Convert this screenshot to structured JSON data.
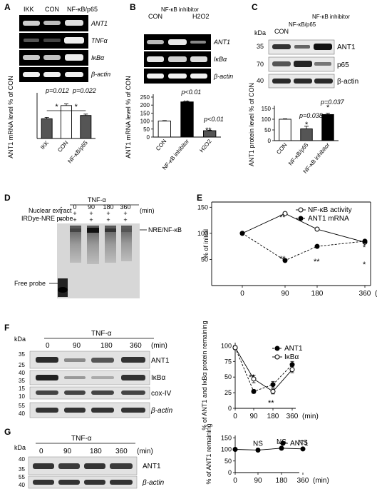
{
  "panels": {
    "A": {
      "letter": "A",
      "lanes": [
        "IKK",
        "CON",
        "NF-κB/p65"
      ],
      "bands": [
        "ANT1",
        "TNFα",
        "IκBα",
        "β-actin"
      ],
      "chart_data": {
        "type": "bar",
        "categories": [
          "IKK",
          "CON",
          "NF-κB/p65"
        ],
        "values": [
          60,
          100,
          70
        ],
        "errors": [
          4,
          5,
          4
        ],
        "ylabel": "ANT1 mRNA level % of CON",
        "ylim": [
          0,
          130
        ],
        "pvalues": [
          "p=0.012",
          "p=0.022"
        ],
        "stars": [
          "*",
          "*"
        ]
      }
    },
    "B": {
      "letter": "B",
      "lanes": [
        "CON",
        "NF-κB inhibitor",
        "H2O2"
      ],
      "bands": [
        "ANT1",
        "IκBα",
        "β-actin"
      ],
      "chart_data": {
        "type": "bar",
        "categories": [
          "CON",
          "NF-κB inhibitor",
          "H2O2"
        ],
        "values": [
          100,
          220,
          40
        ],
        "errors": [
          3,
          4,
          3
        ],
        "ylabel": "ANT1 mRNA level % of CON",
        "ylim": [
          0,
          250
        ],
        "ticks": [
          0,
          50,
          100,
          150,
          200,
          250
        ],
        "pvalues": [
          "p<0.01",
          "p<0.01"
        ],
        "stars": [
          "**",
          "**"
        ]
      }
    },
    "C": {
      "letter": "C",
      "kda_label": "kDa",
      "lanes": [
        "CON",
        "NF-κB/p65",
        "NF-κB inhibitor"
      ],
      "kda_marks": [
        "35",
        "70",
        "40"
      ],
      "bands": [
        "ANT1",
        "p65",
        "β-actin"
      ],
      "chart_data": {
        "type": "bar",
        "categories": [
          "CON",
          "NF-κB/p65",
          "NF-κB inhibitor"
        ],
        "values": [
          100,
          55,
          122
        ],
        "errors": [
          2,
          12,
          6
        ],
        "ylabel": "ANT1 protein level % of CON",
        "ylim": [
          0,
          150
        ],
        "ticks": [
          0,
          50,
          100,
          150
        ],
        "pvalues": [
          "p=0.038",
          "p=0.037"
        ],
        "stars": [
          "*",
          "*"
        ]
      }
    },
    "D": {
      "letter": "D",
      "treatment": "TNF-α",
      "row1_label": "Nuclear extract",
      "row2_label": "IRDye-NRE probe",
      "unit": "(min)",
      "lane_times": [
        "-",
        "0",
        "90",
        "180",
        "360"
      ],
      "row1_marks": [
        "-",
        "+",
        "+",
        "+",
        "+"
      ],
      "row2_marks": [
        "+",
        "+",
        "+",
        "+",
        "+"
      ],
      "complex_label": "NRE/NF-κB",
      "free_label": "Free probe"
    },
    "E": {
      "letter": "E",
      "chart_data": {
        "type": "line",
        "x": [
          0,
          90,
          180,
          360
        ],
        "xticks": [
          "0",
          "90",
          "180",
          "360"
        ],
        "xunit": "(min)",
        "ylabel": "% of initial",
        "yticks": [
          50,
          100,
          150
        ],
        "ylim": [
          0,
          160
        ],
        "series": [
          {
            "name": "NF-κB activity",
            "values": [
              100,
              138,
              108,
              83
            ],
            "marker": "open",
            "dash": false
          },
          {
            "name": "ANT1 mRNA",
            "values": [
              100,
              48,
              75,
              85
            ],
            "marker": "filled",
            "dash": true
          }
        ],
        "stars": [
          "**",
          "**",
          "**",
          "*",
          "*"
        ]
      }
    },
    "F": {
      "letter": "F",
      "kda_label": "kDa",
      "treatment": "TNF-α",
      "times": [
        "0",
        "90",
        "180",
        "360"
      ],
      "unit": "(min)",
      "kda_marks": [
        "35",
        "25",
        "40",
        "35",
        "15",
        "10",
        "55",
        "40"
      ],
      "bands": [
        "ANT1",
        "IκBα",
        "cox-IV",
        "β-actin"
      ],
      "chart_data": {
        "type": "line",
        "x": [
          0,
          90,
          180,
          360
        ],
        "xticks": [
          "0",
          "90",
          "180",
          "360"
        ],
        "xunit": "(min)",
        "ylabel": "% of ANT1 and IκBα protein remaining",
        "yticks": [
          0,
          25,
          50,
          75,
          100
        ],
        "ylim": [
          0,
          105
        ],
        "series": [
          {
            "name": "ANT1",
            "values": [
              97,
              27,
              38,
              70
            ],
            "errors": [
              3,
              3,
              5,
              5
            ],
            "marker": "filled",
            "dash": true
          },
          {
            "name": "IκBα",
            "values": [
              97,
              47,
              27,
              62
            ],
            "errors": [
              3,
              6,
              4,
              5
            ],
            "marker": "open",
            "dash": false
          }
        ],
        "stars": [
          "**",
          "**"
        ]
      }
    },
    "G": {
      "letter": "G",
      "kda_label": "kDa",
      "treatment": "TNF-α",
      "times": [
        "0",
        "90",
        "180",
        "360"
      ],
      "unit": "(min)",
      "kda_marks": [
        "40",
        "35",
        "55",
        "40"
      ],
      "bands": [
        "ANT1",
        "β-actin"
      ],
      "chart_data": {
        "type": "line",
        "x": [
          0,
          90,
          180,
          360
        ],
        "xticks": [
          "0",
          "90",
          "180",
          "360"
        ],
        "xunit": "(min)",
        "ylabel": "% of ANT1 remaining",
        "yticks": [
          0,
          50,
          100,
          150
        ],
        "ylim": [
          0,
          160
        ],
        "series": [
          {
            "name": "ANT1",
            "values": [
              100,
              97,
              105,
              102
            ],
            "errors": [
              2,
              4,
              3,
              5
            ],
            "marker": "filled",
            "dash": false
          }
        ],
        "labels": [
          "NS",
          "NS",
          "NS"
        ]
      }
    }
  }
}
